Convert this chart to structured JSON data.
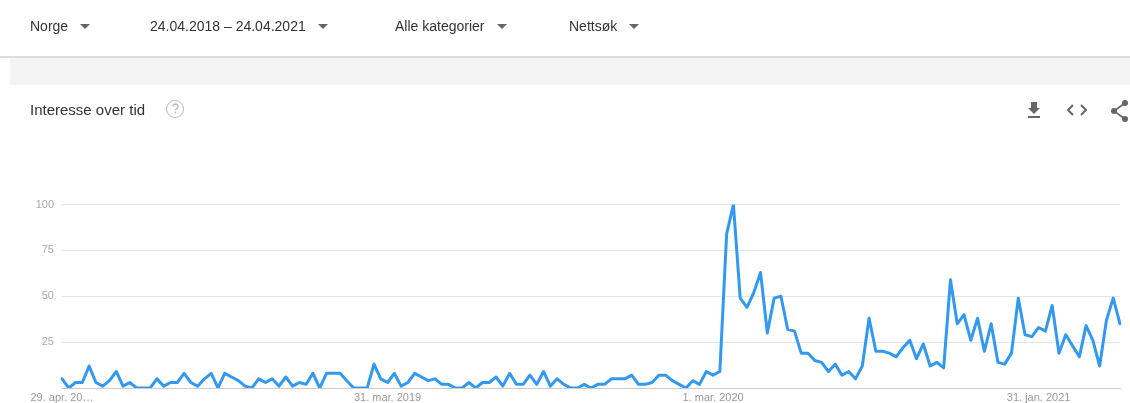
{
  "chart_data": {
    "type": "line",
    "title": "Interesse over tid",
    "annotations": [
      "Norge",
      "24.04.2018 – 24.04.2021",
      "Alle kategorier",
      "Nettsøk"
    ],
    "categories": [
      "29. apr. 20…",
      null,
      null,
      null,
      null,
      null,
      null,
      null,
      null,
      null,
      null,
      null,
      null,
      null,
      null,
      null,
      null,
      null,
      null,
      null,
      null,
      null,
      null,
      null,
      null,
      null,
      null,
      null,
      null,
      null,
      null,
      null,
      null,
      null,
      null,
      null,
      null,
      null,
      null,
      null,
      null,
      null,
      null,
      null,
      null,
      null,
      null,
      null,
      "31. mar. 2019",
      null,
      null,
      null,
      null,
      null,
      null,
      null,
      null,
      null,
      null,
      null,
      null,
      null,
      null,
      null,
      null,
      null,
      null,
      null,
      null,
      null,
      null,
      null,
      null,
      null,
      null,
      null,
      null,
      null,
      null,
      null,
      null,
      null,
      null,
      null,
      null,
      null,
      null,
      null,
      null,
      null,
      null,
      null,
      null,
      null,
      null,
      null,
      "1. mar. 2020",
      null,
      null,
      null,
      null,
      null,
      null,
      null,
      null,
      null,
      null,
      null,
      null,
      null,
      null,
      null,
      null,
      null,
      null,
      null,
      null,
      null,
      null,
      null,
      null,
      null,
      null,
      null,
      null,
      null,
      null,
      null,
      null,
      null,
      null,
      null,
      null,
      null,
      null,
      null,
      null,
      null,
      null,
      null,
      null,
      null,
      null,
      null,
      "31. jan. 2021",
      null,
      null,
      null,
      null,
      null,
      null,
      null,
      null,
      null,
      null,
      null,
      null
    ],
    "series": [
      {
        "color": "#3399ee",
        "values": [
          5,
          0,
          3,
          3,
          12,
          3,
          1,
          4,
          9,
          1,
          3,
          0,
          0,
          0,
          5,
          1,
          3,
          3,
          8,
          3,
          1,
          5,
          8,
          0,
          8,
          6,
          4,
          1,
          0,
          5,
          3,
          5,
          1,
          6,
          1,
          3,
          2,
          8,
          0,
          8,
          8,
          8,
          4,
          0,
          0,
          0,
          13,
          5,
          3,
          8,
          1,
          3,
          8,
          6,
          4,
          5,
          2,
          2,
          0,
          0,
          3,
          0,
          3,
          3,
          6,
          1,
          8,
          2,
          2,
          7,
          2,
          9,
          1,
          5,
          2,
          0,
          0,
          2,
          0,
          2,
          2,
          5,
          5,
          5,
          7,
          2,
          2,
          3,
          7,
          7,
          4,
          2,
          0,
          4,
          2,
          9,
          7,
          9,
          84,
          100,
          49,
          44,
          52,
          63,
          30,
          49,
          50,
          32,
          31,
          19,
          19,
          15,
          14,
          9,
          13,
          7,
          9,
          5,
          12,
          38,
          20,
          20,
          19,
          17,
          22,
          26,
          16,
          24,
          12,
          14,
          11,
          59,
          35,
          40,
          26,
          38,
          20,
          35,
          14,
          13,
          19,
          49,
          29,
          28,
          33,
          31,
          45,
          19,
          29,
          23,
          17,
          34,
          26,
          12,
          37,
          49,
          35
        ]
      }
    ],
    "ylim": [
      0,
      100
    ],
    "yticks": [
      25,
      50,
      75,
      100
    ],
    "grid": "y",
    "legend": false,
    "marker": "none",
    "line_style": "solid"
  }
}
